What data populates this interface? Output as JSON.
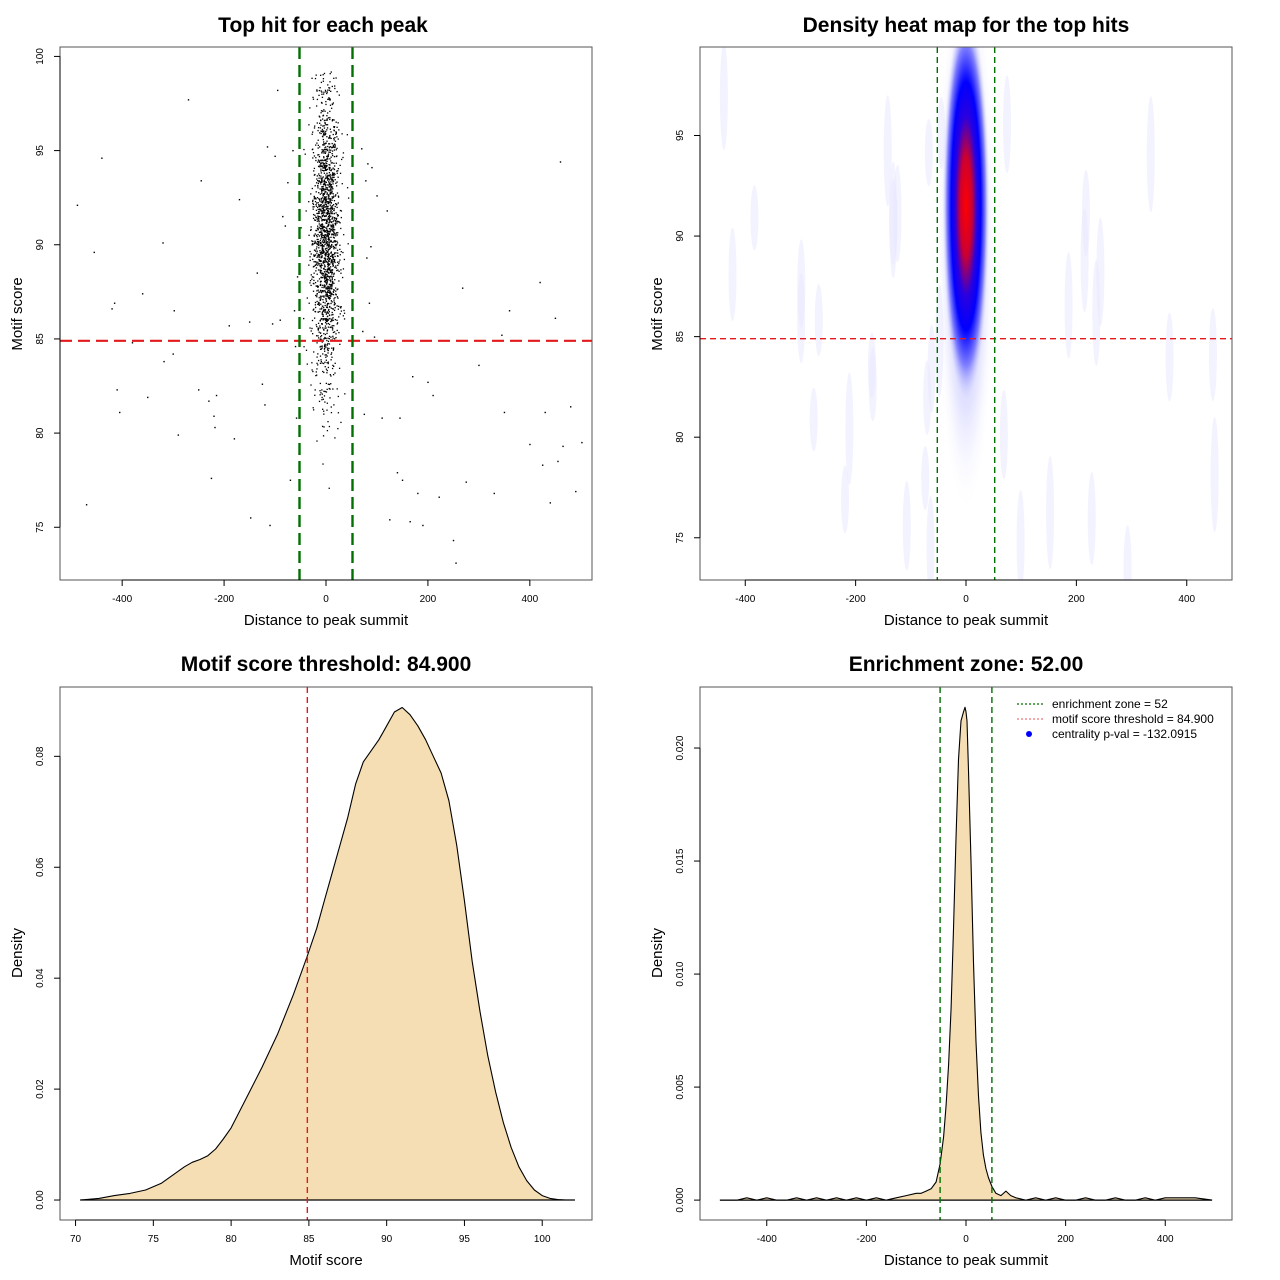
{
  "chart_data": [
    {
      "id": "scatter",
      "type": "scatter",
      "title": "Top hit for each peak",
      "xlabel": "Distance to peak summit",
      "ylabel": "Motif score",
      "xlim": [
        -522,
        522
      ],
      "ylim": [
        72.2,
        100.5
      ],
      "xticks": [
        -400,
        -200,
        0,
        200,
        400
      ],
      "yticks": [
        75,
        80,
        85,
        90,
        95,
        100
      ],
      "grid": false,
      "vlines": [
        {
          "x": -52,
          "color": "#007000",
          "style": "dashed"
        },
        {
          "x": 52,
          "color": "#007000",
          "style": "dashed"
        }
      ],
      "hlines": [
        {
          "y": 84.9,
          "color": "#e31a1c",
          "style": "dashed"
        }
      ],
      "central_cluster": {
        "n_points": 1800,
        "x_center": 0,
        "x_sd": 13,
        "y_mean": 90.3,
        "y_sd": 3.8,
        "y_min": 72.8,
        "y_max": 99.3
      },
      "outliers": [
        [
          -488,
          92.1
        ],
        [
          -470,
          76.2
        ],
        [
          -455,
          89.6
        ],
        [
          -440,
          94.6
        ],
        [
          -420,
          86.6
        ],
        [
          -415,
          86.9
        ],
        [
          -410,
          82.3
        ],
        [
          -405,
          81.1
        ],
        [
          -380,
          84.8
        ],
        [
          -360,
          87.4
        ],
        [
          -350,
          81.9
        ],
        [
          -320,
          90.1
        ],
        [
          -318,
          83.8
        ],
        [
          -300,
          84.2
        ],
        [
          -298,
          86.5
        ],
        [
          -290,
          79.9
        ],
        [
          -270,
          97.7
        ],
        [
          -250,
          82.3
        ],
        [
          -245,
          93.4
        ],
        [
          -230,
          81.7
        ],
        [
          -225,
          77.6
        ],
        [
          -220,
          80.9
        ],
        [
          -218,
          80.3
        ],
        [
          -215,
          82.0
        ],
        [
          -190,
          85.7
        ],
        [
          -180,
          79.7
        ],
        [
          -170,
          92.4
        ],
        [
          -150,
          85.9
        ],
        [
          -148,
          75.5
        ],
        [
          -135,
          88.5
        ],
        [
          -125,
          82.6
        ],
        [
          -120,
          81.5
        ],
        [
          -115,
          95.2
        ],
        [
          -110,
          75.1
        ],
        [
          -105,
          85.8
        ],
        [
          -100,
          94.7
        ],
        [
          -95,
          98.2
        ],
        [
          -90,
          86.0
        ],
        [
          -85,
          91.5
        ],
        [
          -80,
          91.0
        ],
        [
          -75,
          93.3
        ],
        [
          -70,
          77.5
        ],
        [
          -65,
          95.0
        ],
        [
          -62,
          86.5
        ],
        [
          -60,
          84.6
        ],
        [
          -58,
          80.8
        ],
        [
          -56,
          88.3
        ],
        [
          70,
          95.1
        ],
        [
          72,
          85.4
        ],
        [
          75,
          81.0
        ],
        [
          78,
          93.4
        ],
        [
          80,
          89.3
        ],
        [
          82,
          94.3
        ],
        [
          85,
          86.9
        ],
        [
          88,
          89.9
        ],
        [
          90,
          94.1
        ],
        [
          95,
          85.1
        ],
        [
          100,
          92.6
        ],
        [
          110,
          80.8
        ],
        [
          120,
          91.8
        ],
        [
          125,
          75.4
        ],
        [
          140,
          77.9
        ],
        [
          145,
          80.8
        ],
        [
          150,
          77.5
        ],
        [
          165,
          75.3
        ],
        [
          170,
          83.0
        ],
        [
          180,
          76.8
        ],
        [
          190,
          75.1
        ],
        [
          200,
          82.7
        ],
        [
          210,
          82.0
        ],
        [
          222,
          76.6
        ],
        [
          250,
          74.3
        ],
        [
          255,
          73.1
        ],
        [
          268,
          87.7
        ],
        [
          275,
          77.4
        ],
        [
          300,
          83.6
        ],
        [
          330,
          76.8
        ],
        [
          345,
          85.2
        ],
        [
          350,
          81.1
        ],
        [
          360,
          86.5
        ],
        [
          400,
          79.4
        ],
        [
          420,
          88.0
        ],
        [
          425,
          78.3
        ],
        [
          430,
          81.1
        ],
        [
          440,
          76.3
        ],
        [
          450,
          86.1
        ],
        [
          455,
          78.5
        ],
        [
          460,
          94.4
        ],
        [
          465,
          79.3
        ],
        [
          480,
          81.4
        ],
        [
          490,
          76.9
        ],
        [
          502,
          79.5
        ]
      ]
    },
    {
      "id": "heatmap",
      "type": "heatmap",
      "title": "Density heat map for the top hits",
      "xlabel": "Distance to peak summit",
      "ylabel": "Motif score",
      "xlim": [
        -482,
        482
      ],
      "ylim": [
        72.9,
        99.4
      ],
      "xticks": [
        -400,
        -200,
        0,
        200,
        400
      ],
      "yticks": [
        75,
        80,
        85,
        90,
        95
      ],
      "colorscale": [
        "#ffffff",
        "#0000ff",
        "#ff0000"
      ],
      "density_peak": {
        "x": 0,
        "y": 91.5,
        "x_sd": 11,
        "y_sd": 4.5
      },
      "vlines": [
        {
          "x": -52,
          "color": "#007000",
          "style": "dashed"
        },
        {
          "x": 52,
          "color": "#007000",
          "style": "dashed"
        }
      ],
      "hlines": [
        {
          "y": 84.9,
          "color": "#e31a1c",
          "style": "dashed"
        }
      ]
    },
    {
      "id": "score-density",
      "type": "area",
      "title": "Motif score threshold: 84.900",
      "xlabel": "Motif score",
      "ylabel": "Density",
      "xlim": [
        69.0,
        103.2
      ],
      "ylim": [
        -0.0036,
        0.0925
      ],
      "xticks": [
        70,
        75,
        80,
        85,
        90,
        95,
        100
      ],
      "yticks": [
        0.0,
        0.02,
        0.04,
        0.06,
        0.08
      ],
      "ytick_labels": [
        "0.00",
        "0.02",
        "0.04",
        "0.06",
        "0.08"
      ],
      "fill": "#f5deb3",
      "vlines": [
        {
          "x": 84.9,
          "color": "#e31a1c",
          "style": "dashed"
        }
      ],
      "x": [
        70.3,
        71.5,
        72.5,
        73.5,
        74.5,
        75.5,
        76.5,
        77.0,
        77.5,
        78.0,
        78.5,
        79.0,
        79.5,
        80.0,
        81.0,
        82.0,
        83.0,
        84.0,
        84.9,
        85.5,
        86.0,
        86.5,
        87.0,
        87.5,
        88.0,
        88.5,
        89.0,
        89.5,
        90.0,
        90.5,
        91.0,
        91.5,
        92.0,
        92.5,
        93.0,
        93.5,
        94.0,
        94.5,
        95.0,
        95.5,
        96.0,
        96.5,
        97.0,
        97.5,
        98.0,
        98.5,
        99.0,
        99.5,
        100.0,
        100.5,
        101.0,
        101.5,
        102.1
      ],
      "y": [
        0.0,
        0.0003,
        0.0008,
        0.0012,
        0.0018,
        0.003,
        0.005,
        0.006,
        0.0068,
        0.0073,
        0.008,
        0.0092,
        0.011,
        0.013,
        0.0185,
        0.024,
        0.03,
        0.037,
        0.044,
        0.049,
        0.054,
        0.059,
        0.064,
        0.069,
        0.075,
        0.079,
        0.081,
        0.083,
        0.0855,
        0.088,
        0.0888,
        0.0875,
        0.0855,
        0.083,
        0.08,
        0.077,
        0.072,
        0.064,
        0.054,
        0.043,
        0.034,
        0.026,
        0.0195,
        0.014,
        0.0095,
        0.006,
        0.0035,
        0.0018,
        0.0008,
        0.0003,
        0.0001,
        0.0,
        0.0
      ]
    },
    {
      "id": "distance-density",
      "type": "area",
      "title": "Enrichment zone: 52.00",
      "xlabel": "Distance to peak summit",
      "ylabel": "Density",
      "xlim": [
        -534,
        534
      ],
      "ylim": [
        -0.00088,
        0.0227
      ],
      "xticks": [
        -400,
        -200,
        0,
        200,
        400
      ],
      "yticks": [
        0.0,
        0.005,
        0.01,
        0.015,
        0.02
      ],
      "ytick_labels": [
        "0.000",
        "0.005",
        "0.010",
        "0.015",
        "0.020"
      ],
      "fill": "#f5deb3",
      "vlines": [
        {
          "x": -52,
          "color": "#007000",
          "style": "dashed"
        },
        {
          "x": 52,
          "color": "#007000",
          "style": "dashed"
        }
      ],
      "x": [
        -494,
        -460,
        -440,
        -420,
        -400,
        -380,
        -360,
        -340,
        -320,
        -300,
        -280,
        -260,
        -240,
        -220,
        -200,
        -180,
        -160,
        -140,
        -120,
        -100,
        -90,
        -80,
        -70,
        -60,
        -52,
        -45,
        -40,
        -35,
        -30,
        -25,
        -20,
        -15,
        -10,
        -5,
        -2,
        0,
        2,
        5,
        10,
        15,
        20,
        25,
        30,
        35,
        40,
        45,
        52,
        60,
        70,
        80,
        90,
        100,
        120,
        140,
        160,
        180,
        200,
        220,
        240,
        260,
        280,
        300,
        320,
        340,
        360,
        380,
        400,
        420,
        440,
        460,
        494
      ],
      "y": [
        0.0,
        0.0,
        0.0001,
        0.0,
        0.0001,
        0.0,
        0.0,
        0.0001,
        0.0,
        0.0001,
        0.0,
        0.0001,
        0.0,
        0.0001,
        0.0,
        0.0001,
        0.0,
        0.0001,
        0.0002,
        0.0003,
        0.0003,
        0.0004,
        0.0005,
        0.0008,
        0.0016,
        0.0028,
        0.0042,
        0.006,
        0.0085,
        0.012,
        0.016,
        0.0195,
        0.0212,
        0.0216,
        0.0218,
        0.0216,
        0.0212,
        0.019,
        0.015,
        0.0105,
        0.007,
        0.0046,
        0.003,
        0.002,
        0.0014,
        0.001,
        0.0006,
        0.0003,
        0.0002,
        0.0004,
        0.0002,
        0.0001,
        0.0,
        0.0001,
        0.0,
        0.0001,
        0.0,
        0.0,
        0.0001,
        0.0,
        0.0,
        0.0001,
        0.0,
        0.0,
        0.0001,
        0.0,
        0.0001,
        0.0001,
        0.0001,
        0.0001,
        0.0
      ],
      "legend": {
        "placement": "top-right",
        "entries": [
          {
            "label": "enrichment zone = 52",
            "symbol": "dotted-line",
            "color": "#007000"
          },
          {
            "label": "motif score threshold = 84.900",
            "symbol": "dotted-line",
            "color": "#e31a1c"
          },
          {
            "label": "centrality p-val = -132.0915",
            "symbol": "dot",
            "color": "#0000ff"
          }
        ]
      }
    }
  ]
}
